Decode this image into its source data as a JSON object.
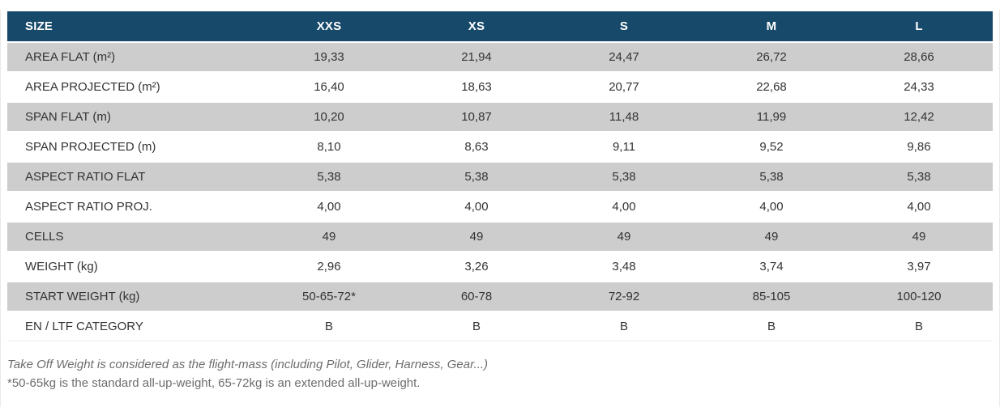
{
  "table": {
    "columns": [
      "SIZE",
      "XXS",
      "XS",
      "S",
      "M",
      "L"
    ],
    "rows": [
      {
        "label": "AREA FLAT (m²)",
        "values": [
          "19,33",
          "21,94",
          "24,47",
          "26,72",
          "28,66"
        ]
      },
      {
        "label": "AREA PROJECTED (m²)",
        "values": [
          "16,40",
          "18,63",
          "20,77",
          "22,68",
          "24,33"
        ]
      },
      {
        "label": "SPAN FLAT (m)",
        "values": [
          "10,20",
          "10,87",
          "11,48",
          "11,99",
          "12,42"
        ]
      },
      {
        "label": "SPAN PROJECTED (m)",
        "values": [
          "8,10",
          "8,63",
          "9,11",
          "9,52",
          "9,86"
        ]
      },
      {
        "label": "ASPECT RATIO FLAT",
        "values": [
          "5,38",
          "5,38",
          "5,38",
          "5,38",
          "5,38"
        ]
      },
      {
        "label": "ASPECT RATIO PROJ.",
        "values": [
          "4,00",
          "4,00",
          "4,00",
          "4,00",
          "4,00"
        ]
      },
      {
        "label": "CELLS",
        "values": [
          "49",
          "49",
          "49",
          "49",
          "49"
        ]
      },
      {
        "label": "WEIGHT (kg)",
        "values": [
          "2,96",
          "3,26",
          "3,48",
          "3,74",
          "3,97"
        ]
      },
      {
        "label": "START WEIGHT (kg)",
        "values": [
          "50-65-72*",
          "60-78",
          "72-92",
          "85-105",
          "100-120"
        ]
      },
      {
        "label": "EN / LTF CATEGORY",
        "values": [
          "B",
          "B",
          "B",
          "B",
          "B"
        ]
      }
    ]
  },
  "footnotes": {
    "line1": "Take Off Weight is considered as the flight-mass (including Pilot, Glider, Harness, Gear...)",
    "line2": "*50-65kg is the standard all-up-weight, 65-72kg is an extended all-up-weight."
  },
  "colors": {
    "header_bg": "#17496B",
    "header_text": "#FFFFFF",
    "row_alt_bg": "#CDCDCD",
    "row_bg": "#FFFFFF",
    "cell_text": "#333333",
    "footnote_text": "#6D6D6D"
  }
}
